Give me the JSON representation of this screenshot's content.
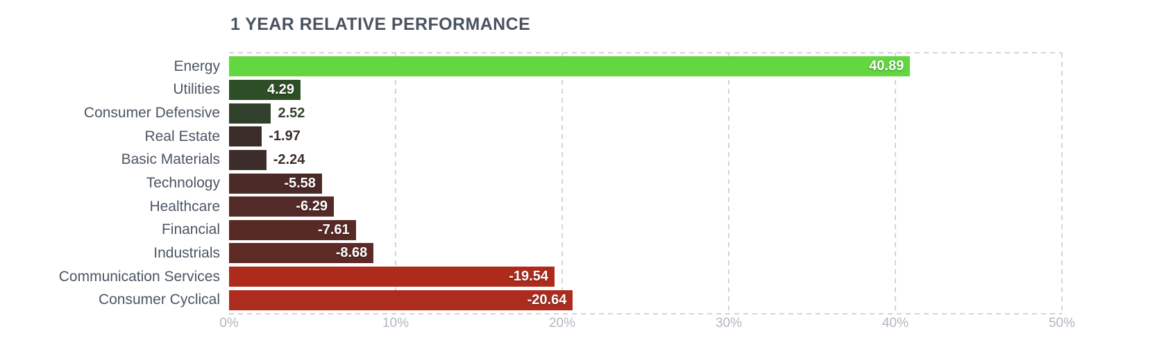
{
  "chart_data": {
    "type": "bar",
    "orientation": "horizontal",
    "title": "1 YEAR RELATIVE PERFORMANCE",
    "categories": [
      "Energy",
      "Utilities",
      "Consumer Defensive",
      "Real Estate",
      "Basic Materials",
      "Technology",
      "Healthcare",
      "Financial",
      "Industrials",
      "Communication Services",
      "Consumer Cyclical"
    ],
    "values": [
      40.89,
      4.29,
      2.52,
      -1.97,
      -2.24,
      -5.58,
      -6.29,
      -7.61,
      -8.68,
      -19.54,
      -20.64
    ],
    "value_labels": [
      "40.89",
      "4.29",
      "2.52",
      "-1.97",
      "-2.24",
      "-5.58",
      "-6.29",
      "-7.61",
      "-8.68",
      "-19.54",
      "-20.64"
    ],
    "bar_colors": [
      "#63d73f",
      "#2d4e27",
      "#31402b",
      "#392c29",
      "#3c2d2a",
      "#4b2a27",
      "#522a28",
      "#582a26",
      "#5d2a25",
      "#ae2b1c",
      "#ad2c1e"
    ],
    "x_ticks": [
      "0%",
      "10%",
      "20%",
      "30%",
      "40%",
      "50%"
    ],
    "x_tick_values": [
      0,
      10,
      20,
      30,
      40,
      50
    ],
    "xlim": [
      0,
      50
    ],
    "gridline_values": [
      10,
      20,
      30,
      40
    ],
    "grid": "vertical-dashed",
    "legend": "none",
    "xlabel": "",
    "ylabel": ""
  },
  "colors": {
    "background": "#ffffff",
    "title": "#49525f",
    "category_label": "#4b5564",
    "axis_tick": "#b1b7bf",
    "grid": "#d3d4d6",
    "value_inside": "#ffffff"
  }
}
